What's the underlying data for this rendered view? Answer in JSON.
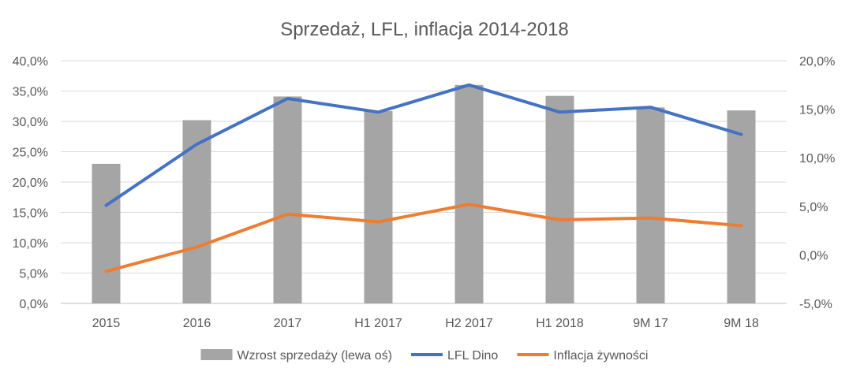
{
  "chart_data": {
    "type": "bar",
    "title": "Sprzedaż, LFL, inflacja 2014-2018",
    "categories": [
      "2015",
      "2016",
      "2017",
      "H1 2017",
      "H2 2017",
      "H1 2018",
      "9M 17",
      "9M 18"
    ],
    "left_axis": {
      "ylim": [
        0,
        40
      ],
      "tick_labels": [
        "0,0%",
        "5,0%",
        "10,0%",
        "15,0%",
        "20,0%",
        "25,0%",
        "30,0%",
        "35,0%",
        "40,0%"
      ]
    },
    "right_axis": {
      "ylim": [
        -5,
        20
      ],
      "tick_labels": [
        "-5,0%",
        "0,0%",
        "5,0%",
        "10,0%",
        "15,0%",
        "20,0%"
      ]
    },
    "grid": true,
    "legend_position": "bottom",
    "series": [
      {
        "name": "Wzrost sprzedaży (lewa oś)",
        "type": "bar",
        "axis": "left",
        "color": "#a5a5a5",
        "values": [
          23.0,
          30.2,
          34.1,
          31.7,
          36.0,
          34.2,
          32.3,
          31.8
        ]
      },
      {
        "name": "LFL Dino",
        "type": "line",
        "axis": "right",
        "color": "#4472c4",
        "values": [
          5.1,
          11.4,
          16.1,
          14.7,
          17.5,
          14.7,
          15.2,
          12.4
        ]
      },
      {
        "name": "Inflacja żywności",
        "type": "line",
        "axis": "right",
        "color": "#ed7d31",
        "values": [
          -1.7,
          0.8,
          4.2,
          3.4,
          5.2,
          3.6,
          3.8,
          3.0
        ]
      }
    ]
  }
}
